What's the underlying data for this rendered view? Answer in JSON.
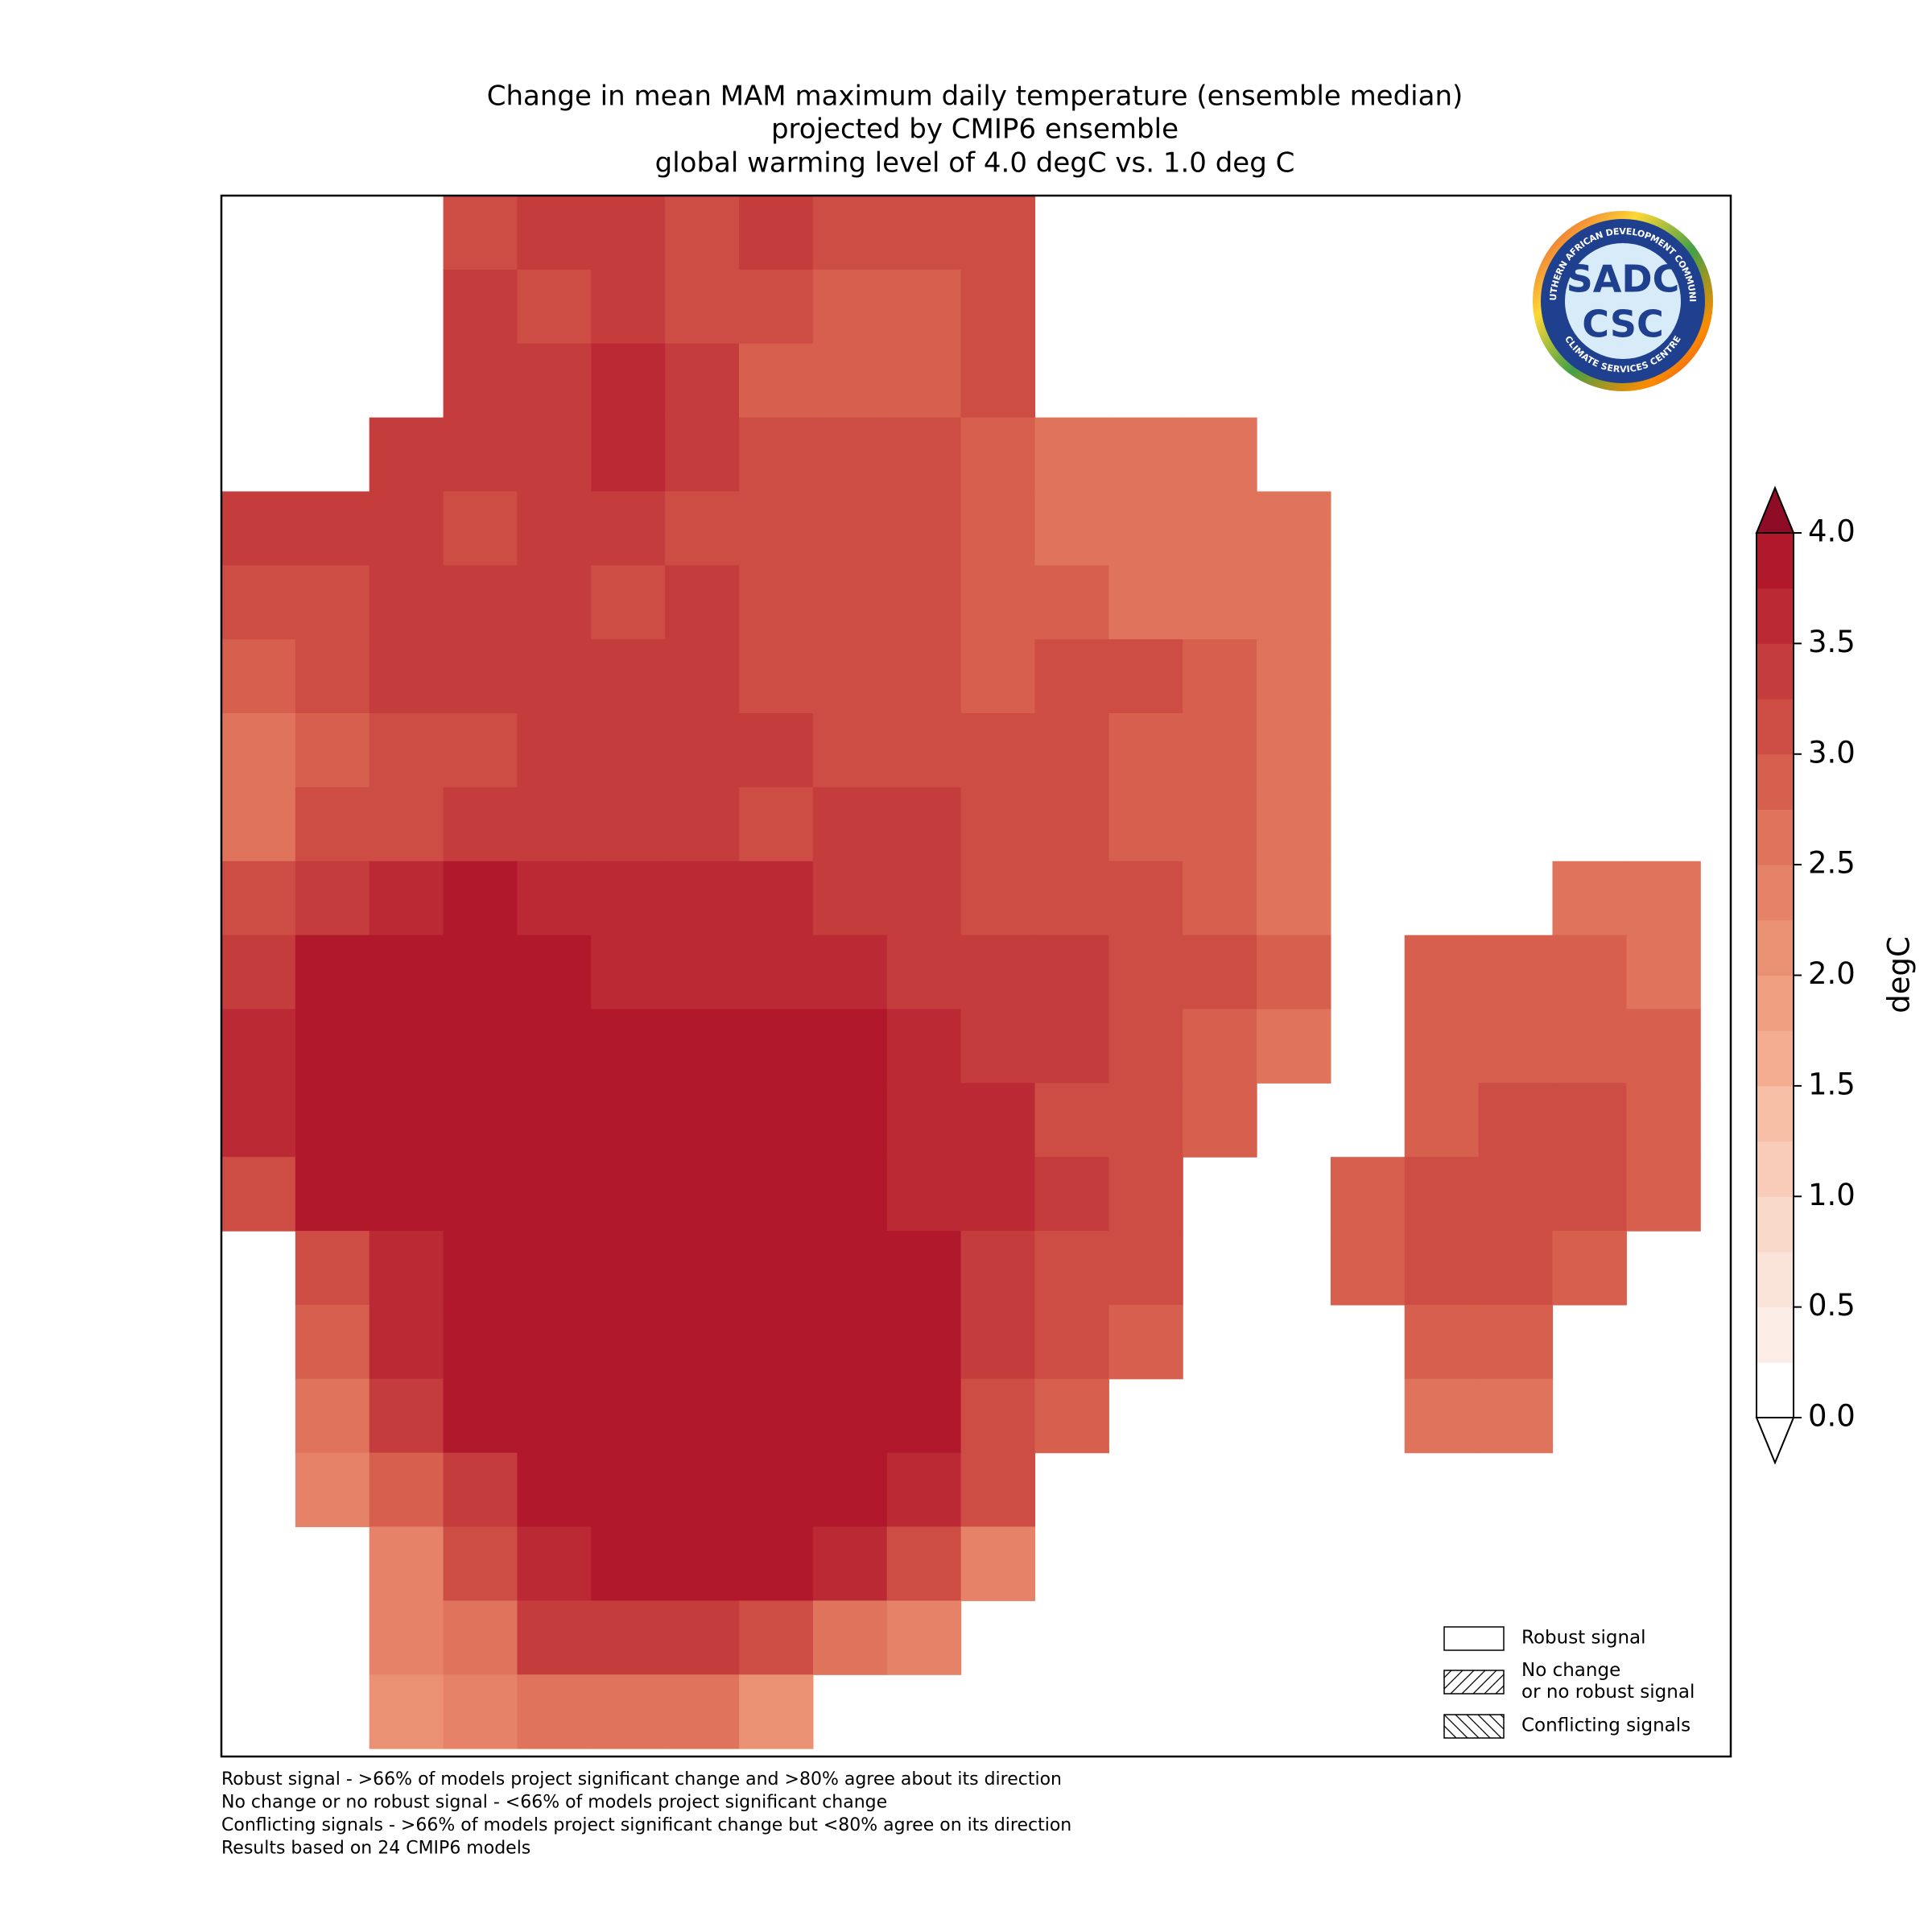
{
  "chart_data": {
    "type": "heatmap",
    "title": [
      "Change in mean MAM maximum daily temperature (ensemble median)",
      "projected by CMIP6 ensemble",
      "global warming level of 4.0 degC vs. 1.0 deg C"
    ],
    "grid": [
      [
        null,
        null,
        null,
        3.2,
        3.3,
        3.3,
        3.1,
        3.3,
        3.0,
        3.0,
        3.0,
        null,
        null,
        null,
        null,
        null,
        null,
        null,
        null,
        null,
        null
      ],
      [
        null,
        null,
        null,
        3.3,
        3.2,
        3.4,
        3.1,
        3.0,
        2.8,
        2.8,
        3.0,
        null,
        null,
        null,
        null,
        null,
        null,
        null,
        null,
        null,
        null
      ],
      [
        null,
        null,
        null,
        3.3,
        3.4,
        3.6,
        3.3,
        2.9,
        2.8,
        2.9,
        3.0,
        null,
        null,
        null,
        null,
        null,
        null,
        null,
        null,
        null,
        null
      ],
      [
        null,
        null,
        3.4,
        3.3,
        3.4,
        3.6,
        3.3,
        3.1,
        3.1,
        3.1,
        2.8,
        2.7,
        2.6,
        2.6,
        null,
        null,
        null,
        null,
        null,
        null,
        null
      ],
      [
        3.3,
        3.3,
        3.4,
        3.2,
        3.3,
        3.3,
        3.2,
        3.0,
        3.1,
        3.1,
        2.9,
        2.7,
        2.6,
        2.6,
        2.6,
        null,
        null,
        null,
        null,
        null,
        null
      ],
      [
        3.0,
        3.2,
        3.3,
        3.3,
        3.3,
        3.2,
        3.3,
        3.2,
        3.2,
        3.2,
        2.9,
        2.8,
        2.7,
        2.6,
        2.7,
        null,
        null,
        null,
        null,
        null,
        null
      ],
      [
        2.8,
        3.0,
        3.3,
        3.3,
        3.3,
        3.3,
        3.3,
        3.1,
        3.1,
        3.2,
        2.9,
        3.0,
        3.0,
        2.8,
        2.7,
        null,
        null,
        null,
        null,
        null,
        null
      ],
      [
        2.7,
        2.9,
        3.1,
        3.2,
        3.3,
        3.3,
        3.3,
        3.3,
        3.2,
        3.2,
        3.2,
        3.0,
        2.9,
        2.8,
        2.7,
        null,
        null,
        null,
        null,
        null,
        null
      ],
      [
        2.7,
        3.0,
        3.2,
        3.4,
        3.3,
        3.4,
        3.3,
        3.2,
        3.3,
        3.3,
        3.1,
        3.1,
        2.9,
        2.8,
        2.7,
        null,
        null,
        null,
        null,
        null,
        null
      ],
      [
        3.0,
        3.4,
        3.6,
        3.8,
        3.7,
        3.5,
        3.6,
        3.5,
        3.4,
        3.4,
        3.2,
        3.2,
        3.0,
        2.9,
        2.7,
        null,
        null,
        null,
        2.6,
        2.6,
        null
      ],
      [
        3.3,
        3.8,
        3.9,
        3.9,
        3.9,
        3.7,
        3.6,
        3.5,
        3.5,
        3.4,
        3.3,
        3.3,
        3.2,
        3.0,
        2.8,
        null,
        2.9,
        2.8,
        2.8,
        2.7,
        null
      ],
      [
        3.5,
        3.9,
        3.9,
        3.9,
        3.9,
        3.9,
        3.8,
        3.9,
        3.8,
        3.6,
        3.4,
        3.3,
        3.2,
        2.9,
        2.7,
        null,
        2.9,
        2.9,
        2.9,
        2.8,
        null
      ],
      [
        3.5,
        3.9,
        3.9,
        3.9,
        3.9,
        3.9,
        3.9,
        3.9,
        3.8,
        3.6,
        3.5,
        3.2,
        3.0,
        2.8,
        null,
        null,
        2.9,
        3.0,
        3.1,
        2.8,
        null
      ],
      [
        3.2,
        3.9,
        3.9,
        3.9,
        3.9,
        3.9,
        3.9,
        3.9,
        3.8,
        3.7,
        3.5,
        3.3,
        3.0,
        null,
        null,
        2.9,
        3.0,
        3.1,
        3.0,
        2.8,
        null
      ],
      [
        null,
        3.0,
        3.6,
        3.9,
        3.9,
        3.9,
        3.9,
        3.9,
        3.9,
        3.8,
        3.4,
        3.2,
        3.0,
        null,
        null,
        2.9,
        3.1,
        3.0,
        2.9,
        null,
        null
      ],
      [
        null,
        2.8,
        3.6,
        3.9,
        3.9,
        3.9,
        3.9,
        3.9,
        3.9,
        3.8,
        3.4,
        3.1,
        2.9,
        null,
        null,
        null,
        2.9,
        2.8,
        null,
        null,
        null
      ],
      [
        null,
        2.6,
        3.3,
        3.8,
        3.9,
        3.9,
        3.9,
        3.9,
        3.9,
        3.8,
        3.2,
        2.9,
        null,
        null,
        null,
        null,
        2.6,
        2.6,
        null,
        null,
        null
      ],
      [
        null,
        2.3,
        2.9,
        3.4,
        3.9,
        3.9,
        3.9,
        3.9,
        3.9,
        3.6,
        3.0,
        null,
        null,
        null,
        null,
        null,
        null,
        null,
        null,
        null,
        null
      ],
      [
        null,
        null,
        2.3,
        3.0,
        3.7,
        3.9,
        3.9,
        3.9,
        3.6,
        3.2,
        2.4,
        null,
        null,
        null,
        null,
        null,
        null,
        null,
        null,
        null,
        null
      ],
      [
        null,
        null,
        2.3,
        2.7,
        3.3,
        3.4,
        3.3,
        3.1,
        2.5,
        2.3,
        null,
        null,
        null,
        null,
        null,
        null,
        null,
        null,
        null,
        null,
        null
      ],
      [
        null,
        null,
        2.2,
        2.3,
        2.6,
        2.5,
        2.5,
        2.2,
        null,
        null,
        null,
        null,
        null,
        null,
        null,
        null,
        null,
        null,
        null,
        null,
        null
      ]
    ],
    "colorbar_label": "degC",
    "clim": [
      0,
      4
    ],
    "cticks": [
      {
        "value": 0,
        "label": "0.0"
      },
      0.5,
      {
        "value": 1,
        "label": "1.0"
      },
      1.5,
      {
        "value": 2,
        "label": "2.0"
      },
      2.5,
      {
        "value": 3,
        "label": "3.0"
      },
      3.5,
      {
        "value": 4,
        "label": "4.0"
      }
    ],
    "colors": [
      "#ffffff",
      "#fbece6",
      "#fae3d8",
      "#f9d9ca",
      "#f8ccb8",
      "#f6bea5",
      "#f4ad90",
      "#f09f80",
      "#eb9173",
      "#e58267",
      "#df735b",
      "#d6604d",
      "#cd4d45",
      "#c43c3c",
      "#bb2a34",
      "#b2182b"
    ],
    "under_color": "#ffffff",
    "over_color": "#8e0c25",
    "legend": [
      {
        "label": [
          "Robust signal"
        ],
        "hatch": "none"
      },
      {
        "label": [
          "No change",
          "or no robust signal"
        ],
        "hatch": "fwd"
      },
      {
        "label": [
          "Conflicting signals"
        ],
        "hatch": "back"
      }
    ],
    "notes": [
      "Robust signal - >66% of models project significant change and >80% agree about its direction",
      "No change or no robust signal - <66% of models project significant change",
      "Conflicting signals - >66% of models project significant change but <80% agree on its direction",
      "Results based on 24 CMIP6 models"
    ],
    "logo": {
      "top": "SOUTHERN AFRICAN DEVELOPMENT COMMUNITY",
      "bottom": "CLIMATE SERVICES CENTRE",
      "upper": "SADC",
      "lower": "CSC"
    }
  }
}
